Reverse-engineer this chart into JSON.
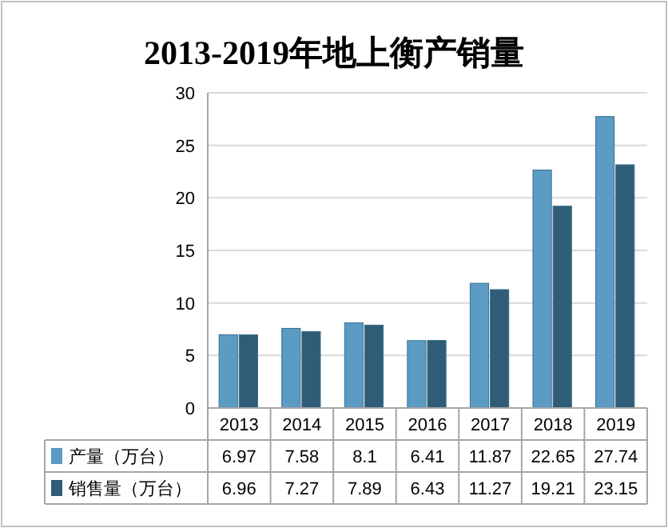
{
  "chart_data": {
    "type": "bar",
    "title": "2013-2019年地上衡产销量",
    "categories": [
      "2013",
      "2014",
      "2015",
      "2016",
      "2017",
      "2018",
      "2019"
    ],
    "series": [
      {
        "name": "产量（万台）",
        "color": "#5b9bc4",
        "values": [
          6.97,
          7.58,
          8.1,
          6.41,
          11.87,
          22.65,
          27.74
        ]
      },
      {
        "name": "销售量（万台）",
        "color": "#2f5d78",
        "values": [
          6.96,
          7.27,
          7.89,
          6.43,
          11.27,
          19.21,
          23.15
        ]
      }
    ],
    "ylim": [
      0,
      30
    ],
    "yticks": [
      0,
      5,
      10,
      15,
      20,
      25,
      30
    ],
    "grid": "y",
    "data_labels": true,
    "legend": "bottom"
  }
}
